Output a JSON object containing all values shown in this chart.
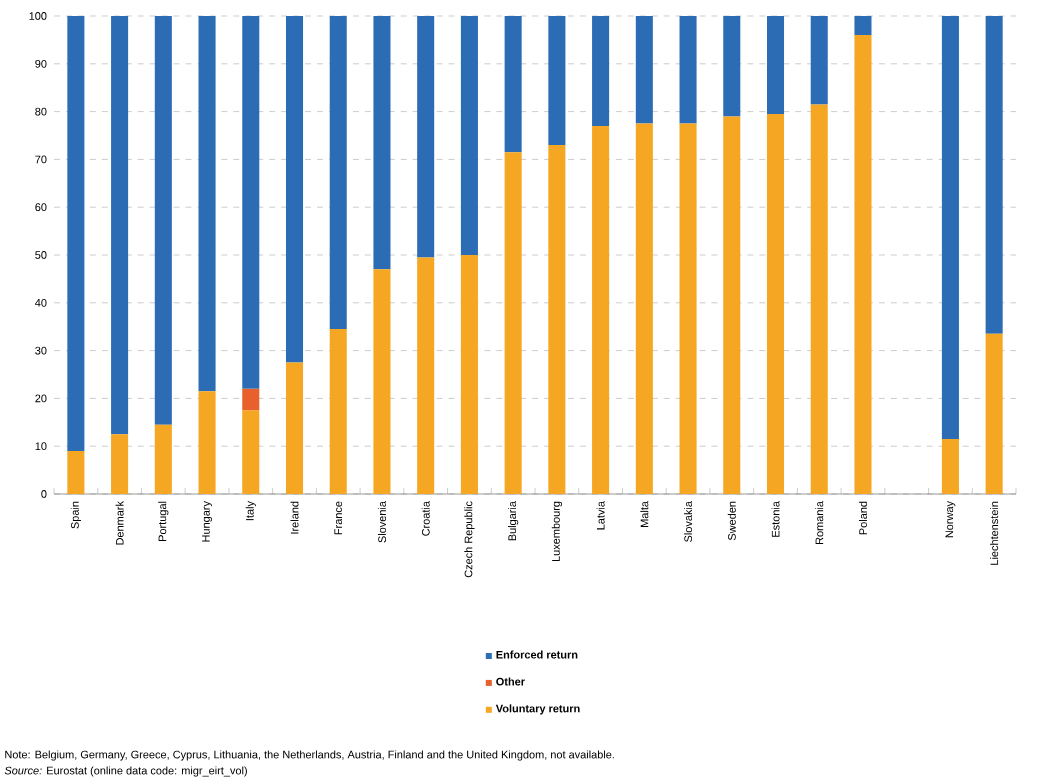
{
  "chart_data": {
    "type": "bar",
    "stacked": true,
    "categories": [
      "Spain",
      "Denmark",
      "Portugal",
      "Hungary",
      "Italy",
      "Ireland",
      "France",
      "Slovenia",
      "Croatia",
      "Czech Republic",
      "Bulgaria",
      "Luxembourg",
      "Latvia",
      "Malta",
      "Slovakia",
      "Sweden",
      "Estonia",
      "Romania",
      "Poland",
      null,
      "Norway",
      "Liechtenstein"
    ],
    "series": [
      {
        "name": "Voluntary return",
        "color": "#f5a623",
        "values": [
          9,
          12.5,
          14.5,
          21.5,
          17.5,
          27.5,
          34.5,
          47,
          49.5,
          50,
          71.5,
          73,
          77,
          77.5,
          77.5,
          79,
          79.5,
          81.5,
          96,
          null,
          11.5,
          33.5
        ]
      },
      {
        "name": "Other",
        "color": "#e8602c",
        "values": [
          null,
          null,
          null,
          null,
          4.5,
          null,
          null,
          null,
          null,
          null,
          null,
          null,
          null,
          null,
          null,
          null,
          null,
          null,
          null,
          null,
          null,
          null
        ]
      },
      {
        "name": "Enforced return",
        "color": "#2b6cb4",
        "values": [
          91,
          87.5,
          85.5,
          78.5,
          78,
          72.5,
          65.5,
          53,
          50.5,
          50,
          28.5,
          27,
          23,
          22.5,
          22.5,
          21,
          20.5,
          18.5,
          4,
          null,
          88.5,
          66.5
        ]
      }
    ],
    "ylim": [
      0,
      100
    ],
    "yticks": [
      0,
      10,
      20,
      30,
      40,
      50,
      60,
      70,
      80,
      90,
      100
    ],
    "grid": "y",
    "legend": "bottom",
    "annotations": [
      "Note: Belgium, Germany, Greece, Cyprus, Lithuania, the Netherlands, Austria, Finland and the United Kingdom, not available.",
      "*Source:* Eurostat (online data code: migr_eirt_vol)"
    ]
  }
}
